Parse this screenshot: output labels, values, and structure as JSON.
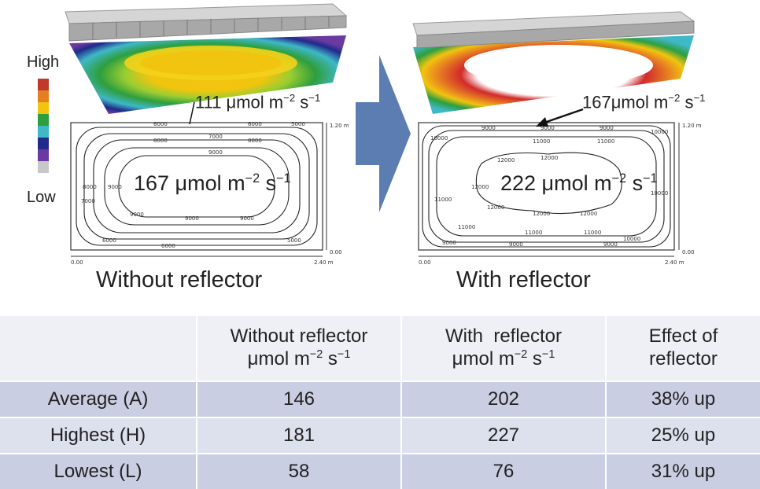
{
  "legend": {
    "high_label": "High",
    "low_label": "Low",
    "colors": [
      "#c0392b",
      "#e67e22",
      "#f1c40f",
      "#2e9e3e",
      "#3fb8c7",
      "#1f2a8a",
      "#6a3aa0",
      "#c8c8c8"
    ]
  },
  "left_panel": {
    "caption": "Without reflector",
    "center_value": "167 μmol m",
    "center_exp": "−2",
    "center_tail": " s",
    "center_exp2": "−1",
    "callout_value": "111 μmol m",
    "callout_exp": "−2",
    "callout_tail": " s",
    "callout_exp2": "−1",
    "contours": [
      "5000",
      "6000",
      "7000",
      "8000",
      "9000"
    ],
    "axis_y_top": "1.20 m",
    "axis_y_bottom": "0.00",
    "axis_x_left": "0.00",
    "axis_x_right": "2.40 m"
  },
  "right_panel": {
    "caption": "With reflector",
    "center_value": "222 μmol m",
    "center_exp": "−2",
    "center_tail": " s",
    "center_exp2": "−1",
    "callout_value": "167μmol m",
    "callout_exp": "−2",
    "callout_tail": " s",
    "callout_exp2": "−1",
    "contours": [
      "9000",
      "10000",
      "11000",
      "12000"
    ],
    "axis_y_top": "1.20 m",
    "axis_y_bottom": "0.00",
    "axis_x_left": "0.00",
    "axis_x_right": "2.40 m"
  },
  "table": {
    "headers": [
      {
        "line1": "",
        "line2": ""
      },
      {
        "line1": "Without reflector",
        "line2": "μmol m",
        "exp": "−2",
        "tail": " s",
        "exp2": "−1"
      },
      {
        "line1": "With  reflector",
        "line2": "μmol m",
        "exp": "−2",
        "tail": " s",
        "exp2": "−1"
      },
      {
        "line1": "Effect of",
        "line2": "reflector"
      }
    ],
    "rows": [
      {
        "label": "Average (A)",
        "without": "146",
        "with": "202",
        "effect": "38% up"
      },
      {
        "label": "Highest (H)",
        "without": "181",
        "with": "227",
        "effect": "25% up"
      },
      {
        "label": "Lowest (L)",
        "without": "58",
        "with": "76",
        "effect": "31% up"
      }
    ]
  }
}
